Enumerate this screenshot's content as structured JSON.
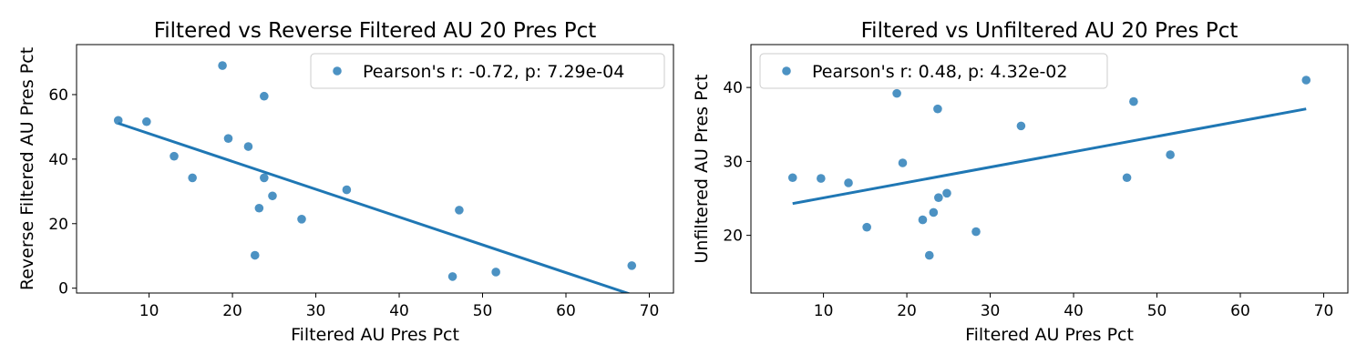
{
  "chart_data": [
    {
      "type": "scatter",
      "title": "Filtered vs Reverse Filtered AU 20 Pres Pct",
      "xlabel": "Filtered AU Pres Pct",
      "ylabel": "Reverse Filtered AU Pres Pct",
      "xlim": [
        1.3,
        72.9
      ],
      "ylim": [
        -1.5,
        75.5
      ],
      "xticks": [
        10,
        20,
        30,
        40,
        50,
        60,
        70
      ],
      "yticks": [
        0,
        20,
        40,
        60
      ],
      "legend": "Pearson's r: -0.72, p: 7.29e-04",
      "legend_position": "top-right",
      "color": "#1f77b4",
      "points": [
        [
          6.3,
          52.0
        ],
        [
          9.7,
          51.6
        ],
        [
          13.0,
          40.9
        ],
        [
          15.2,
          34.2
        ],
        [
          18.8,
          69.0
        ],
        [
          19.5,
          46.4
        ],
        [
          21.9,
          43.9
        ],
        [
          22.7,
          10.2
        ],
        [
          23.2,
          24.8
        ],
        [
          23.8,
          59.5
        ],
        [
          23.8,
          34.2
        ],
        [
          24.8,
          28.6
        ],
        [
          28.3,
          21.4
        ],
        [
          33.7,
          30.5
        ],
        [
          46.4,
          3.6
        ],
        [
          47.2,
          24.2
        ],
        [
          51.6,
          5.0
        ],
        [
          67.9,
          7.0
        ]
      ],
      "fit_line": [
        [
          6.3,
          51.1
        ],
        [
          67.9,
          -2.0
        ]
      ]
    },
    {
      "type": "scatter",
      "title": "Filtered vs Unfiltered AU 20 Pres Pct",
      "xlabel": "Filtered AU Pres Pct",
      "ylabel": "Unfiltered AU Pres Pct",
      "xlim": [
        1.3,
        72.9
      ],
      "ylim": [
        12.2,
        45.8
      ],
      "xticks": [
        10,
        20,
        30,
        40,
        50,
        60,
        70
      ],
      "yticks": [
        20,
        30,
        40
      ],
      "legend": "Pearson's r: 0.48, p: 4.32e-02",
      "legend_position": "top-left",
      "color": "#1f77b4",
      "points": [
        [
          6.3,
          27.8
        ],
        [
          9.7,
          27.7
        ],
        [
          13.0,
          27.1
        ],
        [
          15.2,
          21.1
        ],
        [
          18.8,
          39.2
        ],
        [
          19.5,
          29.8
        ],
        [
          21.9,
          22.1
        ],
        [
          22.7,
          17.3
        ],
        [
          23.2,
          23.1
        ],
        [
          23.7,
          37.1
        ],
        [
          23.8,
          25.1
        ],
        [
          24.8,
          25.7
        ],
        [
          28.3,
          20.5
        ],
        [
          33.7,
          34.8
        ],
        [
          46.4,
          27.8
        ],
        [
          47.2,
          38.1
        ],
        [
          51.6,
          30.9
        ],
        [
          67.9,
          41.0
        ]
      ],
      "fit_line": [
        [
          6.3,
          24.3
        ],
        [
          67.9,
          37.1
        ]
      ]
    }
  ]
}
